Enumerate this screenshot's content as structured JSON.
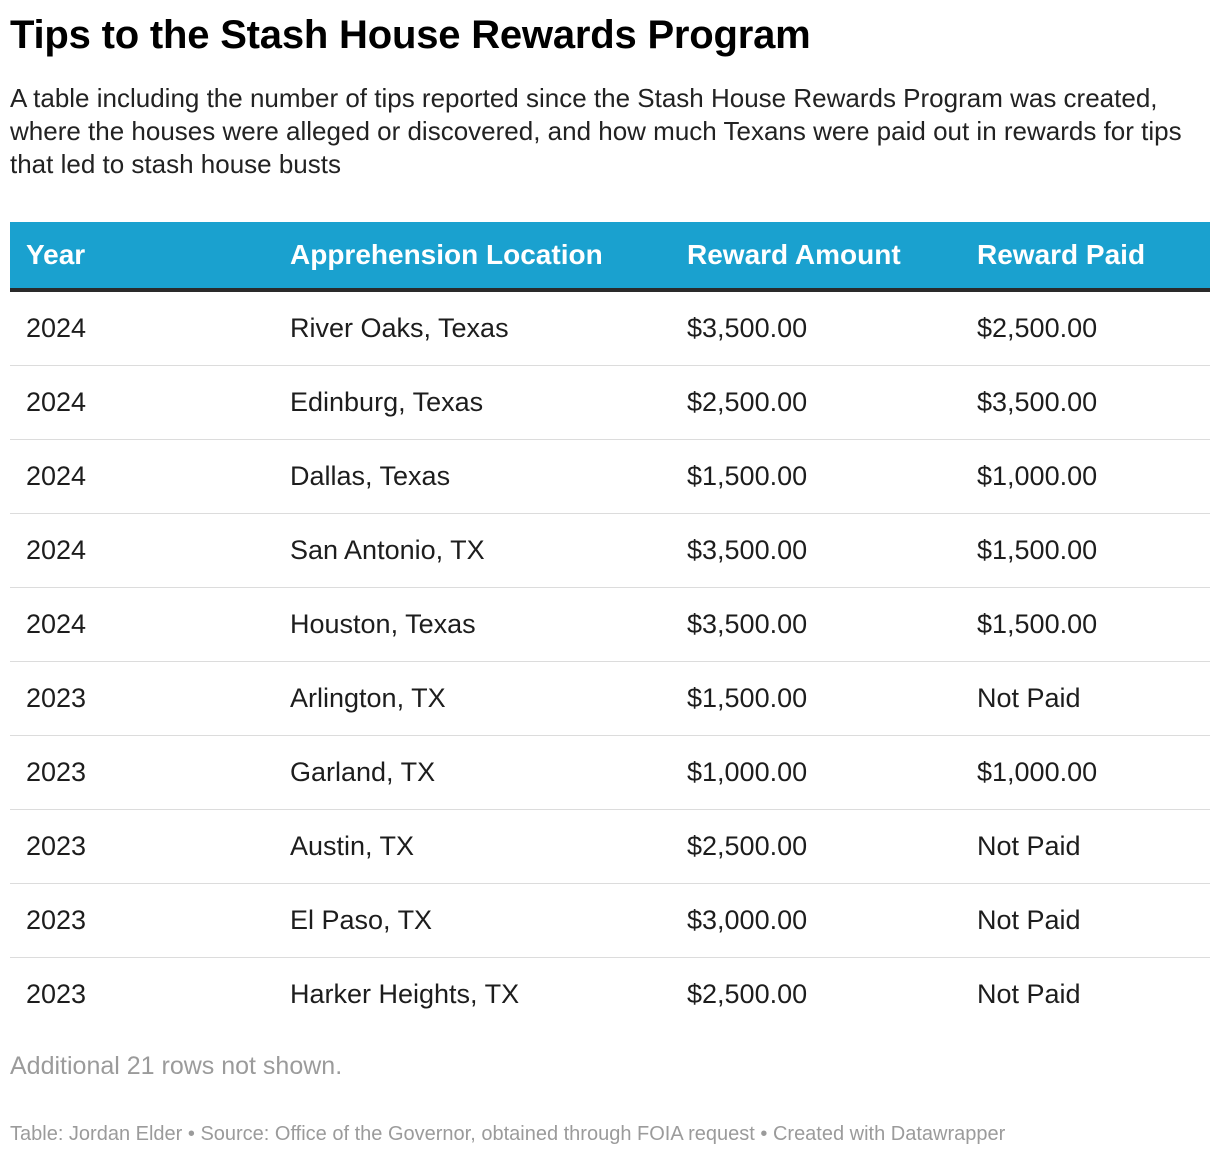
{
  "title": "Tips to the Stash House Rewards Program",
  "subtitle": "A table including the number of tips reported since the Stash House Rewards Program was created, where the houses were alleged or discovered, and how much Texans were paid out in rewards for tips that led to stash house busts",
  "colors": {
    "header_background": "#1aa1cf",
    "header_text": "#ffffff",
    "muted_text": "#9b9b9b"
  },
  "chart_data": {
    "type": "table",
    "columns": [
      "Year",
      "Apprehension Location",
      "Reward Amount",
      "Reward Paid"
    ],
    "rows": [
      [
        "2024",
        "River Oaks, Texas",
        "$3,500.00",
        "$2,500.00"
      ],
      [
        "2024",
        "Edinburg, Texas",
        "$2,500.00",
        "$3,500.00"
      ],
      [
        "2024",
        "Dallas, Texas",
        "$1,500.00",
        "$1,000.00"
      ],
      [
        "2024",
        "San Antonio, TX",
        "$3,500.00",
        "$1,500.00"
      ],
      [
        "2024",
        "Houston, Texas",
        "$3,500.00",
        "$1,500.00"
      ],
      [
        "2023",
        "Arlington, TX",
        "$1,500.00",
        "Not Paid"
      ],
      [
        "2023",
        "Garland, TX",
        "$1,000.00",
        "$1,000.00"
      ],
      [
        "2023",
        "Austin, TX",
        "$2,500.00",
        "Not Paid"
      ],
      [
        "2023",
        "El Paso, TX",
        "$3,000.00",
        "Not Paid"
      ],
      [
        "2023",
        "Harker Heights, TX",
        "$2,500.00",
        "Not Paid"
      ]
    ]
  },
  "more_rows_note": "Additional 21 rows not shown.",
  "footer": "Table: Jordan Elder • Source: Office of the Governor, obtained through FOIA request • Created with Datawrapper"
}
